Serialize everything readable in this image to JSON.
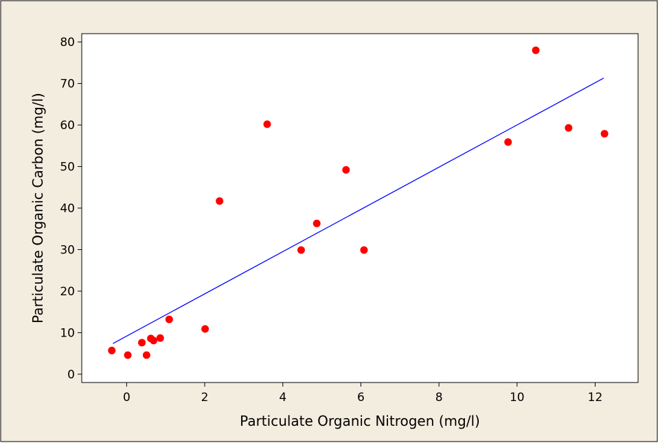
{
  "colors": {
    "figure_background": "#f3eddf",
    "plot_background": "#ffffff",
    "points": "#ff0000",
    "fit_line": "#0000ff",
    "axis": "#000000"
  },
  "chart_data": {
    "type": "scatter",
    "title": "",
    "xlabel": "Particulate Organic Nitrogen (mg/l)",
    "ylabel": "Particulate Organic Carbon (mg/l)",
    "xlim": [
      -1.15,
      13.1
    ],
    "ylim": [
      -2,
      82
    ],
    "xticks": [
      0,
      2,
      4,
      6,
      8,
      10,
      12
    ],
    "yticks": [
      0,
      10,
      20,
      30,
      40,
      50,
      60,
      70,
      80
    ],
    "grid": false,
    "legend": "none",
    "series": [
      {
        "points": [
          {
            "x": -0.38,
            "y": 5.7
          },
          {
            "x": 0.03,
            "y": 4.6
          },
          {
            "x": 0.39,
            "y": 7.6
          },
          {
            "x": 0.51,
            "y": 4.6
          },
          {
            "x": 0.62,
            "y": 8.6
          },
          {
            "x": 0.69,
            "y": 8.1
          },
          {
            "x": 0.86,
            "y": 8.7
          },
          {
            "x": 1.09,
            "y": 13.2
          },
          {
            "x": 2.01,
            "y": 10.9
          },
          {
            "x": 2.38,
            "y": 41.7
          },
          {
            "x": 3.6,
            "y": 60.2
          },
          {
            "x": 4.47,
            "y": 29.9
          },
          {
            "x": 4.87,
            "y": 36.3
          },
          {
            "x": 5.62,
            "y": 49.2
          },
          {
            "x": 6.08,
            "y": 29.9
          },
          {
            "x": 9.77,
            "y": 55.9
          },
          {
            "x": 10.48,
            "y": 78.0
          },
          {
            "x": 11.32,
            "y": 59.3
          },
          {
            "x": 12.24,
            "y": 57.9
          }
        ]
      }
    ],
    "fit_line": {
      "x": [
        -0.35,
        12.22
      ],
      "y": [
        7.4,
        71.3
      ]
    }
  }
}
